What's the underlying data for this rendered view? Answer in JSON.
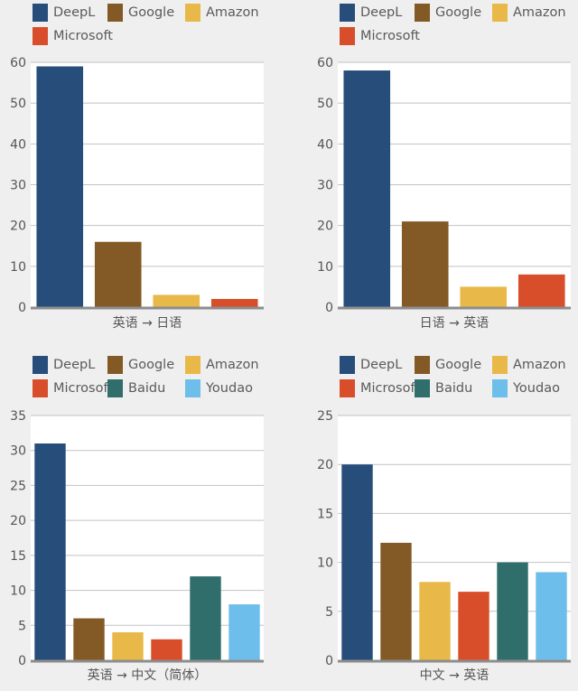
{
  "chart_data": [
    {
      "type": "bar",
      "categories": [
        "DeepL",
        "Google",
        "Amazon",
        "Microsoft"
      ],
      "values": [
        59,
        16,
        3,
        2
      ],
      "xlabel": "英语 → 日语",
      "ylabel": "",
      "ylim": [
        0,
        60
      ],
      "yticks": [
        "0",
        "10",
        "20",
        "30",
        "40",
        "50",
        "60"
      ],
      "grid": true,
      "legend": "top"
    },
    {
      "type": "bar",
      "categories": [
        "DeepL",
        "Google",
        "Amazon",
        "Microsoft"
      ],
      "values": [
        58,
        21,
        5,
        8
      ],
      "xlabel": "日语 → 英语",
      "ylabel": "",
      "ylim": [
        0,
        60
      ],
      "yticks": [
        "0",
        "10",
        "20",
        "30",
        "40",
        "50",
        "60"
      ],
      "grid": true,
      "legend": "top"
    },
    {
      "type": "bar",
      "categories": [
        "DeepL",
        "Google",
        "Amazon",
        "Microsoft",
        "Baidu",
        "Youdao"
      ],
      "values": [
        31,
        6,
        4,
        3,
        12,
        8
      ],
      "xlabel": "英语 → 中文（简体）",
      "ylabel": "",
      "ylim": [
        0,
        35
      ],
      "yticks": [
        "0",
        "5",
        "10",
        "15",
        "20",
        "25",
        "30",
        "35"
      ],
      "grid": true,
      "legend": "top"
    },
    {
      "type": "bar",
      "categories": [
        "DeepL",
        "Google",
        "Amazon",
        "Microsoft",
        "Baidu",
        "Youdao"
      ],
      "values": [
        20,
        12,
        8,
        7,
        10,
        9
      ],
      "xlabel": "中文 → 英语",
      "ylabel": "",
      "ylim": [
        0,
        25
      ],
      "yticks": [
        "0",
        "5",
        "10",
        "15",
        "20",
        "25"
      ],
      "grid": true,
      "legend": "top"
    }
  ],
  "colors": {
    "DeepL": "#274d7b",
    "Google": "#835a26",
    "Amazon": "#e8b948",
    "Microsoft": "#d84e2a",
    "Baidu": "#2f6e6b",
    "Youdao": "#6dbeea",
    "grid": "#c2c2c2",
    "axis": "#8d8d8d",
    "plot_bg": "#ffffff",
    "page_bg": "#efefef"
  }
}
